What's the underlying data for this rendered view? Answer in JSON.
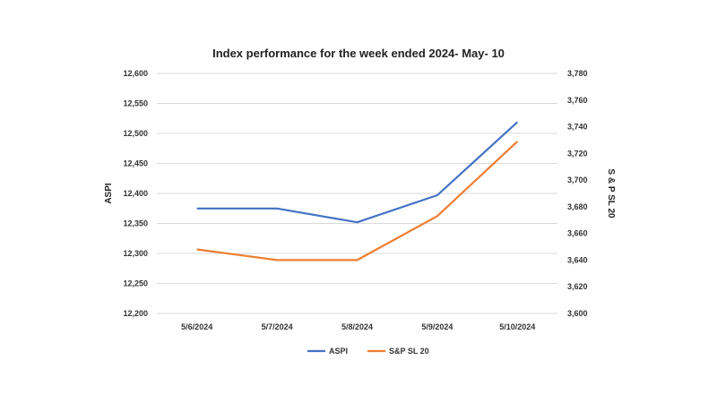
{
  "chart_data": {
    "type": "line",
    "title": "Index performance for the week ended 2024- May- 10",
    "categories": [
      "5/6/2024",
      "5/7/2024",
      "5/8/2024",
      "5/9/2024",
      "5/10/2024"
    ],
    "ylabel": "ASPI",
    "y2label": "S & P SL 20",
    "ylim": [
      12200,
      12600
    ],
    "y2lim": [
      3600,
      3780
    ],
    "yticks": [
      "12,200",
      "12,250",
      "12,300",
      "12,350",
      "12,400",
      "12,450",
      "12,500",
      "12,550",
      "12,600"
    ],
    "y2ticks": [
      "3,600",
      "3,620",
      "3,640",
      "3,660",
      "3,680",
      "3,700",
      "3,720",
      "3,740",
      "3,760",
      "3,780"
    ],
    "grid": true,
    "legend_position": "bottom",
    "series": [
      {
        "name": "ASPI",
        "axis": "left",
        "color": "#4472c4",
        "values": [
          12375,
          12375,
          12352,
          12397,
          12519
        ]
      },
      {
        "name": "S&P SL 20",
        "axis": "right",
        "color": "#ed7d31",
        "values": [
          3648,
          3640,
          3640,
          3673,
          3729
        ]
      }
    ]
  }
}
